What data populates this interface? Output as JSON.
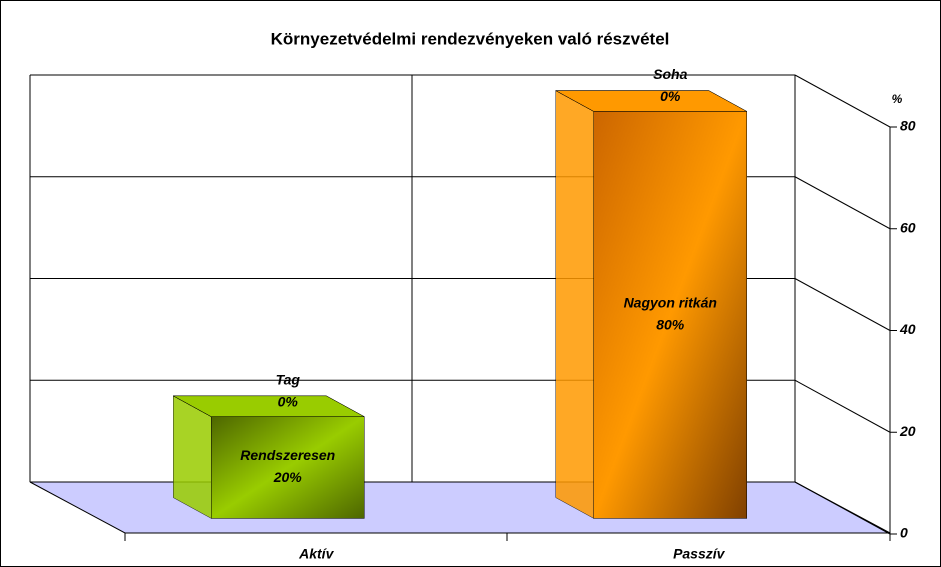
{
  "chart_data": {
    "type": "bar3d_stacked",
    "title": "Környezetvédelmi rendezvényeken való részvétel",
    "y_axis_label": "%",
    "categories": [
      "Aktív",
      "Passzív"
    ],
    "series": [
      {
        "name": "Rendszeresen",
        "color": "#99cc00",
        "values": [
          20,
          null
        ],
        "value_labels": [
          "20%",
          null
        ]
      },
      {
        "name": "Tag",
        "color": "#99cc00",
        "values": [
          0,
          null
        ],
        "value_labels": [
          "0%",
          null
        ]
      },
      {
        "name": "Nagyon ritkán",
        "color": "#ff9900",
        "values": [
          null,
          80
        ],
        "value_labels": [
          null,
          "80%"
        ]
      },
      {
        "name": "Soha",
        "color": "#ff9900",
        "values": [
          null,
          0
        ],
        "value_labels": [
          null,
          "0%"
        ]
      }
    ],
    "ylim": [
      0,
      80
    ],
    "yticks": [
      0,
      20,
      40,
      60,
      80
    ],
    "grid": true
  }
}
